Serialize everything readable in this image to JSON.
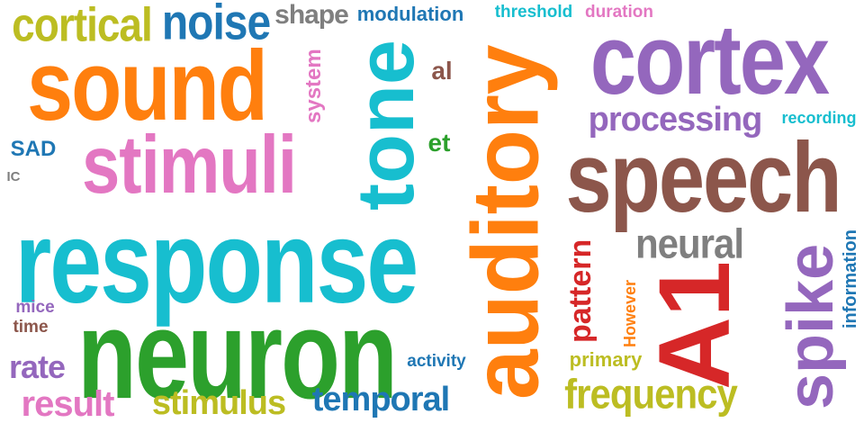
{
  "word_cloud": {
    "words": [
      {
        "text": "response",
        "color": "#17becf",
        "orientation": "horizontal"
      },
      {
        "text": "neuron",
        "color": "#2ca02c",
        "orientation": "horizontal"
      },
      {
        "text": "sound",
        "color": "#ff7f0e",
        "orientation": "horizontal"
      },
      {
        "text": "stimuli",
        "color": "#e377c2",
        "orientation": "horizontal"
      },
      {
        "text": "cortical",
        "color": "#bcbd22",
        "orientation": "horizontal"
      },
      {
        "text": "noise",
        "color": "#1f77b4",
        "orientation": "horizontal"
      },
      {
        "text": "shape",
        "color": "#7f7f7f",
        "orientation": "horizontal"
      },
      {
        "text": "modulation",
        "color": "#1f77b4",
        "orientation": "horizontal"
      },
      {
        "text": "threshold",
        "color": "#17becf",
        "orientation": "horizontal"
      },
      {
        "text": "duration",
        "color": "#e377c2",
        "orientation": "horizontal"
      },
      {
        "text": "cortex",
        "color": "#9467bd",
        "orientation": "horizontal"
      },
      {
        "text": "processing",
        "color": "#9467bd",
        "orientation": "horizontal"
      },
      {
        "text": "recording",
        "color": "#17becf",
        "orientation": "horizontal"
      },
      {
        "text": "speech",
        "color": "#8c564b",
        "orientation": "horizontal"
      },
      {
        "text": "neural",
        "color": "#7f7f7f",
        "orientation": "horizontal"
      },
      {
        "text": "frequency",
        "color": "#bcbd22",
        "orientation": "horizontal"
      },
      {
        "text": "temporal",
        "color": "#1f77b4",
        "orientation": "horizontal"
      },
      {
        "text": "stimulus",
        "color": "#bcbd22",
        "orientation": "horizontal"
      },
      {
        "text": "result",
        "color": "#e377c2",
        "orientation": "horizontal"
      },
      {
        "text": "rate",
        "color": "#9467bd",
        "orientation": "horizontal"
      },
      {
        "text": "time",
        "color": "#8c564b",
        "orientation": "horizontal"
      },
      {
        "text": "mice",
        "color": "#9467bd",
        "orientation": "horizontal"
      },
      {
        "text": "SAD",
        "color": "#1f77b4",
        "orientation": "horizontal"
      },
      {
        "text": "IC",
        "color": "#7f7f7f",
        "orientation": "horizontal"
      },
      {
        "text": "al",
        "color": "#8c564b",
        "orientation": "horizontal"
      },
      {
        "text": "et",
        "color": "#2ca02c",
        "orientation": "horizontal"
      },
      {
        "text": "activity",
        "color": "#1f77b4",
        "orientation": "horizontal"
      },
      {
        "text": "primary",
        "color": "#bcbd22",
        "orientation": "horizontal"
      },
      {
        "text": "auditory",
        "color": "#ff7f0e",
        "orientation": "vertical"
      },
      {
        "text": "tone",
        "color": "#17becf",
        "orientation": "vertical"
      },
      {
        "text": "A1",
        "color": "#d62728",
        "orientation": "vertical"
      },
      {
        "text": "spike",
        "color": "#9467bd",
        "orientation": "vertical"
      },
      {
        "text": "system",
        "color": "#e377c2",
        "orientation": "vertical"
      },
      {
        "text": "pattern",
        "color": "#d62728",
        "orientation": "vertical"
      },
      {
        "text": "However",
        "color": "#ff7f0e",
        "orientation": "vertical"
      },
      {
        "text": "information",
        "color": "#1f77b4",
        "orientation": "vertical"
      }
    ]
  }
}
